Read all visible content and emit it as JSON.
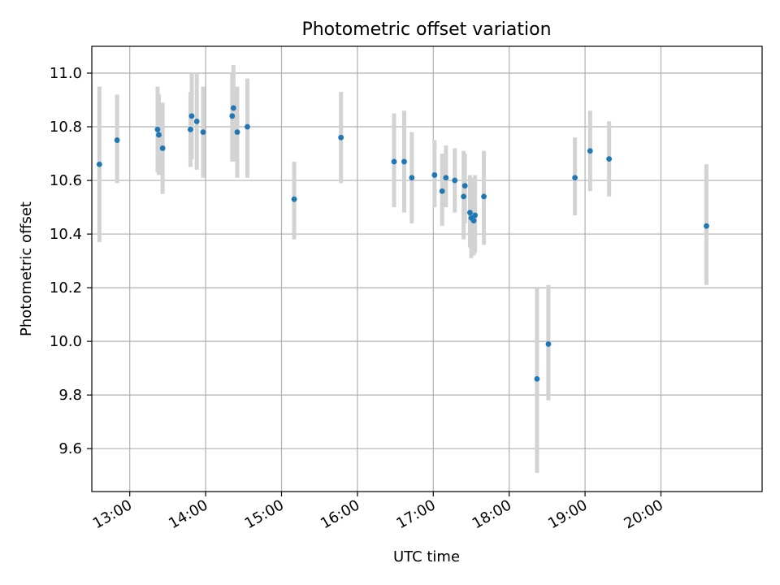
{
  "chart_data": {
    "type": "scatter",
    "title": "Photometric offset variation",
    "xlabel": "UTC time",
    "ylabel": "Photometric offset",
    "x_ticks": [
      "13:00",
      "14:00",
      "15:00",
      "16:00",
      "17:00",
      "18:00",
      "19:00",
      "20:00"
    ],
    "y_ticks": [
      "9.6",
      "9.8",
      "10.0",
      "10.2",
      "10.4",
      "10.6",
      "10.8",
      "11.0"
    ],
    "xlim": [
      "12:30",
      "21:20"
    ],
    "ylim": [
      9.44,
      11.1
    ],
    "grid": true,
    "colors": {
      "point": "#1f77b4",
      "errorbar": "#d3d3d3",
      "grid": "#b0b0b0"
    },
    "series": [
      {
        "points": [
          {
            "x": "12:36",
            "y": 10.66,
            "ylow": 10.37,
            "yhigh": 10.95
          },
          {
            "x": "12:50",
            "y": 10.75,
            "ylow": 10.59,
            "yhigh": 10.92
          },
          {
            "x": "13:22",
            "y": 10.79,
            "ylow": 10.63,
            "yhigh": 10.95
          },
          {
            "x": "13:23",
            "y": 10.77,
            "ylow": 10.62,
            "yhigh": 10.92
          },
          {
            "x": "13:26",
            "y": 10.72,
            "ylow": 10.55,
            "yhigh": 10.89
          },
          {
            "x": "13:48",
            "y": 10.79,
            "ylow": 10.65,
            "yhigh": 10.93
          },
          {
            "x": "13:49",
            "y": 10.84,
            "ylow": 10.68,
            "yhigh": 11.0
          },
          {
            "x": "13:53",
            "y": 10.82,
            "ylow": 10.64,
            "yhigh": 11.0
          },
          {
            "x": "13:58",
            "y": 10.78,
            "ylow": 10.61,
            "yhigh": 10.95
          },
          {
            "x": "14:21",
            "y": 10.84,
            "ylow": 10.67,
            "yhigh": 11.0
          },
          {
            "x": "14:22",
            "y": 10.87,
            "ylow": 10.67,
            "yhigh": 11.03
          },
          {
            "x": "14:25",
            "y": 10.78,
            "ylow": 10.61,
            "yhigh": 10.95
          },
          {
            "x": "14:33",
            "y": 10.8,
            "ylow": 10.61,
            "yhigh": 10.98
          },
          {
            "x": "15:10",
            "y": 10.53,
            "ylow": 10.38,
            "yhigh": 10.67
          },
          {
            "x": "15:47",
            "y": 10.76,
            "ylow": 10.59,
            "yhigh": 10.93
          },
          {
            "x": "16:29",
            "y": 10.67,
            "ylow": 10.5,
            "yhigh": 10.85
          },
          {
            "x": "16:37",
            "y": 10.67,
            "ylow": 10.48,
            "yhigh": 10.86
          },
          {
            "x": "16:43",
            "y": 10.61,
            "ylow": 10.44,
            "yhigh": 10.78
          },
          {
            "x": "17:01",
            "y": 10.62,
            "ylow": 10.5,
            "yhigh": 10.75
          },
          {
            "x": "17:07",
            "y": 10.56,
            "ylow": 10.43,
            "yhigh": 10.7
          },
          {
            "x": "17:10",
            "y": 10.61,
            "ylow": 10.5,
            "yhigh": 10.73
          },
          {
            "x": "17:17",
            "y": 10.6,
            "ylow": 10.48,
            "yhigh": 10.72
          },
          {
            "x": "17:24",
            "y": 10.54,
            "ylow": 10.38,
            "yhigh": 10.71
          },
          {
            "x": "17:25",
            "y": 10.58,
            "ylow": 10.44,
            "yhigh": 10.7
          },
          {
            "x": "17:29",
            "y": 10.48,
            "ylow": 10.35,
            "yhigh": 10.62
          },
          {
            "x": "17:30",
            "y": 10.46,
            "ylow": 10.31,
            "yhigh": 10.61
          },
          {
            "x": "17:32",
            "y": 10.45,
            "ylow": 10.32,
            "yhigh": 10.58
          },
          {
            "x": "17:33",
            "y": 10.47,
            "ylow": 10.33,
            "yhigh": 10.62
          },
          {
            "x": "17:40",
            "y": 10.54,
            "ylow": 10.36,
            "yhigh": 10.71
          },
          {
            "x": "18:22",
            "y": 9.86,
            "ylow": 9.51,
            "yhigh": 10.2
          },
          {
            "x": "18:31",
            "y": 9.99,
            "ylow": 9.78,
            "yhigh": 10.21
          },
          {
            "x": "18:52",
            "y": 10.61,
            "ylow": 10.47,
            "yhigh": 10.76
          },
          {
            "x": "19:04",
            "y": 10.71,
            "ylow": 10.56,
            "yhigh": 10.86
          },
          {
            "x": "19:19",
            "y": 10.68,
            "ylow": 10.54,
            "yhigh": 10.82
          },
          {
            "x": "20:36",
            "y": 10.43,
            "ylow": 10.21,
            "yhigh": 10.66
          }
        ]
      }
    ]
  }
}
